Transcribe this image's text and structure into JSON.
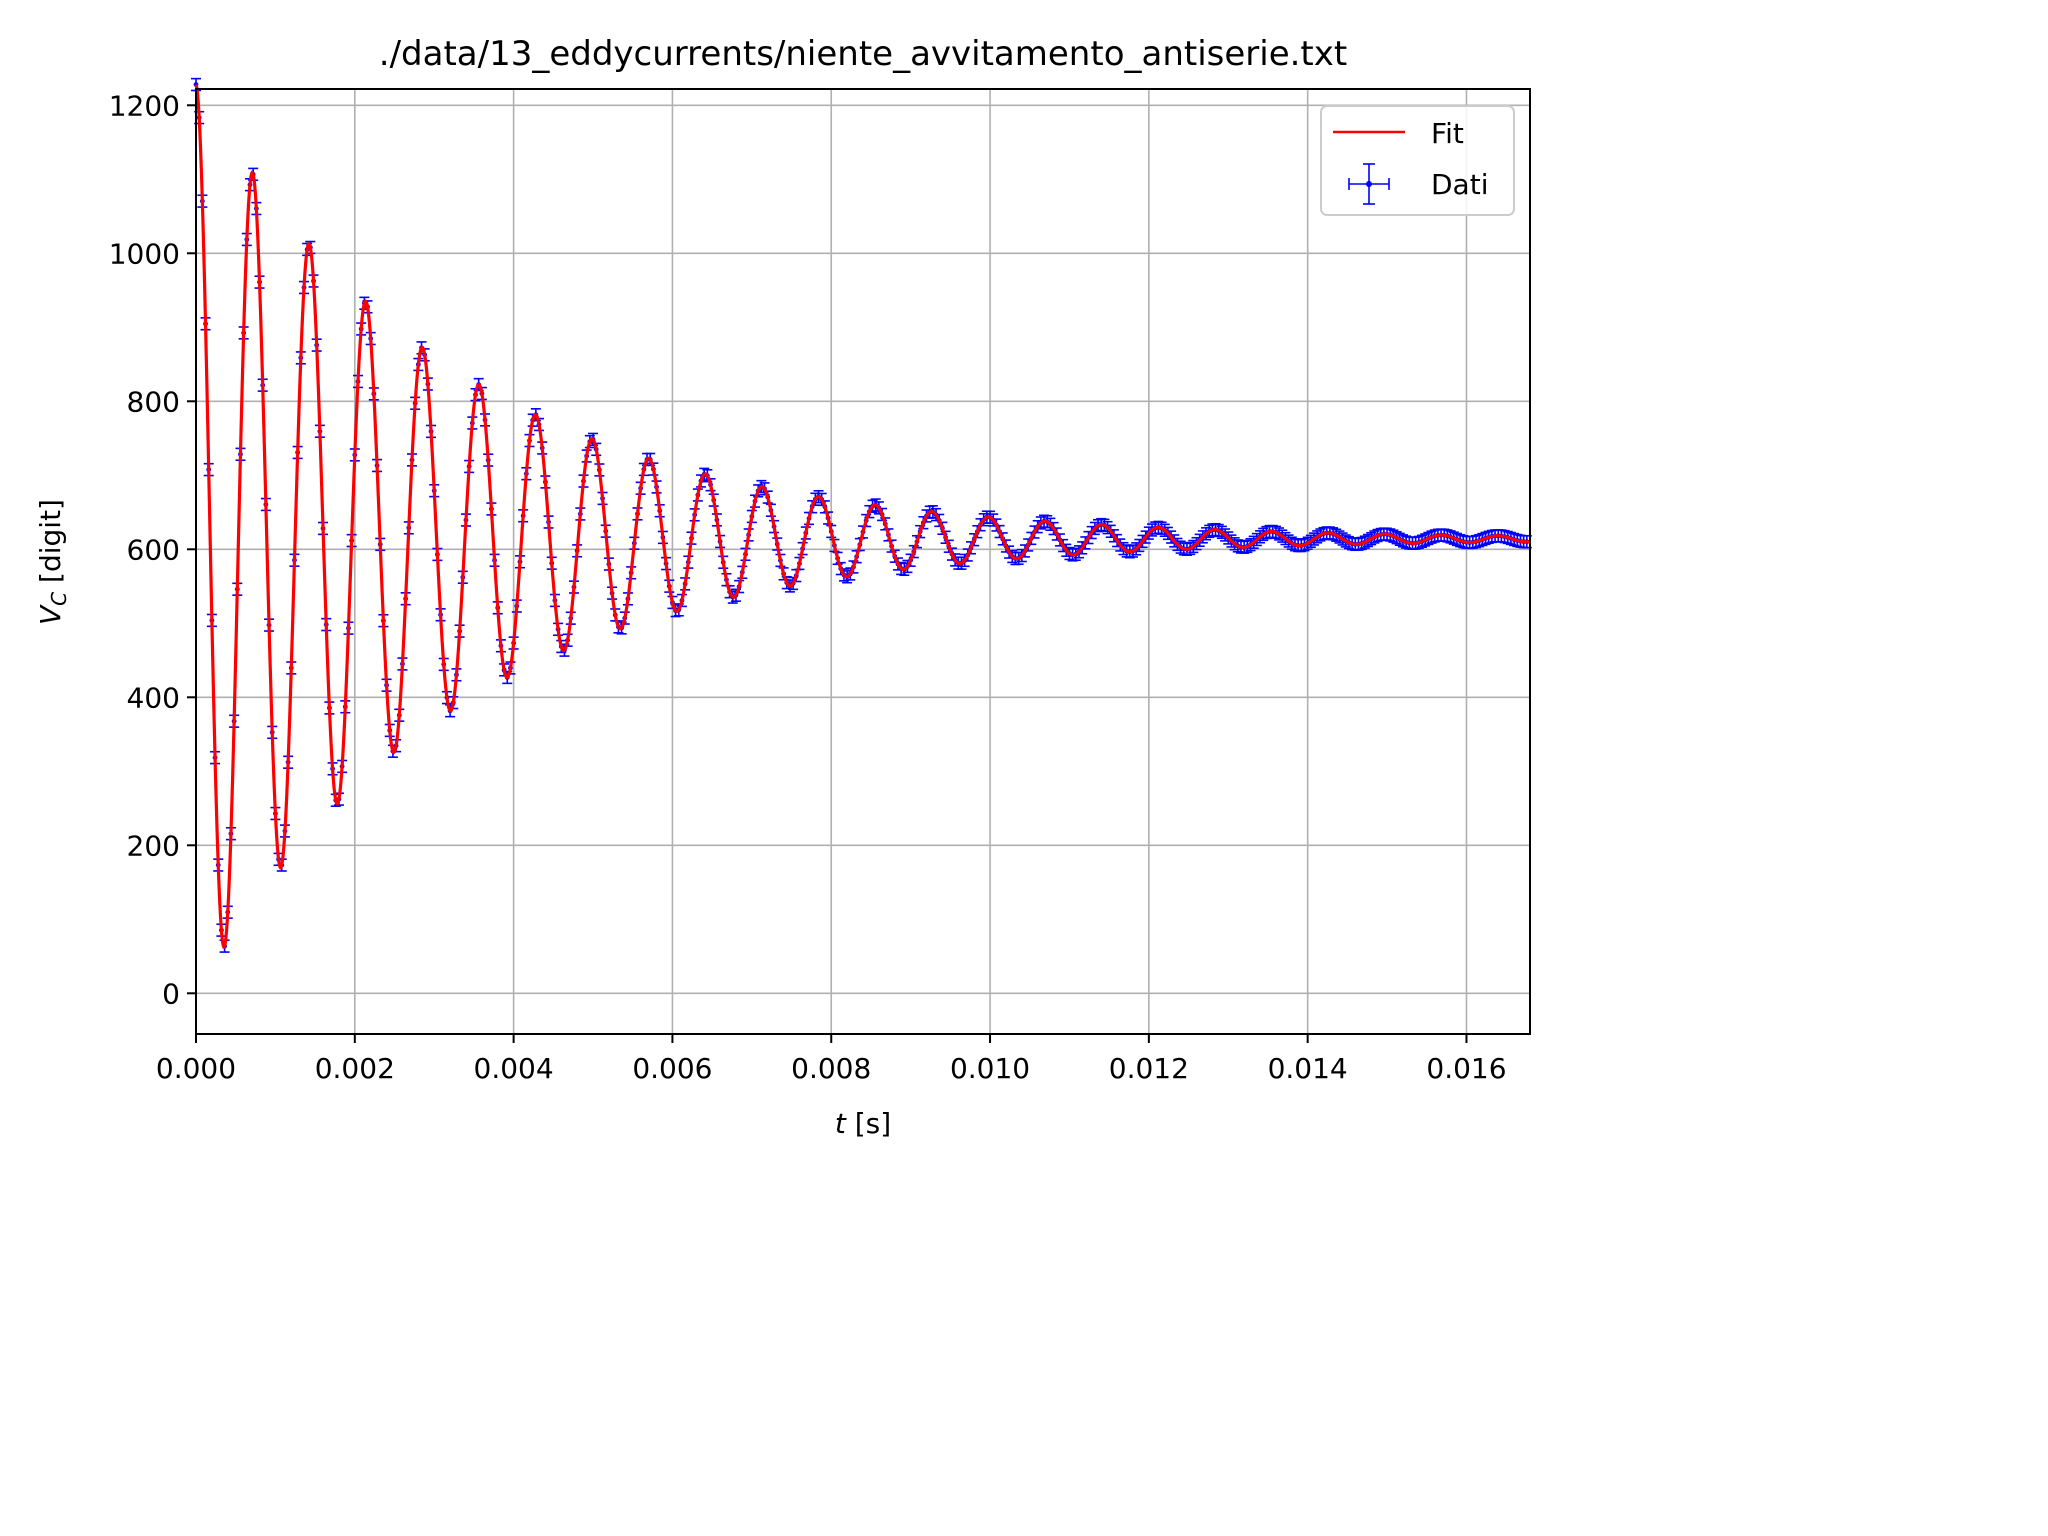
{
  "chart_data": {
    "type": "scatter",
    "title": "./data/13_eddycurrents/niente_avvitamento_antiserie.txt",
    "xlabel": "t [s]",
    "xlabel_var": "t",
    "xlabel_unit": " [s]",
    "ylabel": "V_C [digit]",
    "ylabel_var": "V",
    "ylabel_sub": "C",
    "ylabel_unit": " [digit]",
    "xlim": [
      0.0,
      0.0168
    ],
    "ylim": [
      -55,
      1222
    ],
    "xticks": [
      0.0,
      0.002,
      0.004,
      0.006,
      0.008,
      0.01,
      0.012,
      0.014,
      0.016
    ],
    "xtick_labels": [
      "0.000",
      "0.002",
      "0.004",
      "0.006",
      "0.008",
      "0.010",
      "0.012",
      "0.014",
      "0.016"
    ],
    "yticks": [
      0,
      200,
      400,
      600,
      800,
      1000,
      1200
    ],
    "ytick_labels": [
      "0",
      "200",
      "400",
      "600",
      "800",
      "1000",
      "1200"
    ],
    "grid": true,
    "legend_position": "top-right",
    "series": [
      {
        "name": "Fit",
        "kind": "line",
        "color": "#ff0000",
        "model": "damped_cosine",
        "params": {
          "offset": 614,
          "amplitude": 614,
          "period_s": 0.000713,
          "decay_time_s": 0.0033
        }
      },
      {
        "name": "Dati",
        "kind": "errorbar",
        "color": "#0000ff",
        "sampling_interval_s": 4e-05,
        "n_points": 420,
        "y_error_digit": 8,
        "peaks_max": [
          [
            0.00055,
            1157
          ],
          [
            0.00126,
            1050
          ],
          [
            0.00197,
            962
          ],
          [
            0.00268,
            893
          ],
          [
            0.0034,
            835
          ],
          [
            0.00411,
            790
          ],
          [
            0.00482,
            753
          ],
          [
            0.00553,
            727
          ],
          [
            0.00625,
            705
          ],
          [
            0.00696,
            688
          ],
          [
            0.00767,
            673
          ],
          [
            0.00838,
            661
          ],
          [
            0.0091,
            651
          ],
          [
            0.00981,
            643
          ],
          [
            0.01052,
            637
          ],
          [
            0.01124,
            632
          ],
          [
            0.01195,
            628
          ],
          [
            0.01266,
            625
          ],
          [
            0.01337,
            622
          ],
          [
            0.01409,
            620
          ],
          [
            0.0148,
            619
          ],
          [
            0.01551,
            617
          ],
          [
            0.01622,
            616
          ]
        ],
        "peaks_min": [
          [
            0.00019,
            7
          ],
          [
            0.0009,
            125
          ],
          [
            0.00161,
            226
          ],
          [
            0.00233,
            303
          ],
          [
            0.00304,
            367
          ],
          [
            0.00375,
            415
          ],
          [
            0.00446,
            455
          ],
          [
            0.00518,
            487
          ],
          [
            0.00589,
            512
          ],
          [
            0.0066,
            531
          ],
          [
            0.00731,
            548
          ],
          [
            0.00803,
            562
          ],
          [
            0.00874,
            573
          ],
          [
            0.00945,
            582
          ],
          [
            0.01017,
            590
          ],
          [
            0.01088,
            596
          ],
          [
            0.01159,
            601
          ],
          [
            0.0123,
            604
          ],
          [
            0.01302,
            607
          ],
          [
            0.01373,
            609
          ],
          [
            0.01444,
            611
          ],
          [
            0.01515,
            612
          ],
          [
            0.01587,
            613
          ]
        ]
      }
    ]
  }
}
